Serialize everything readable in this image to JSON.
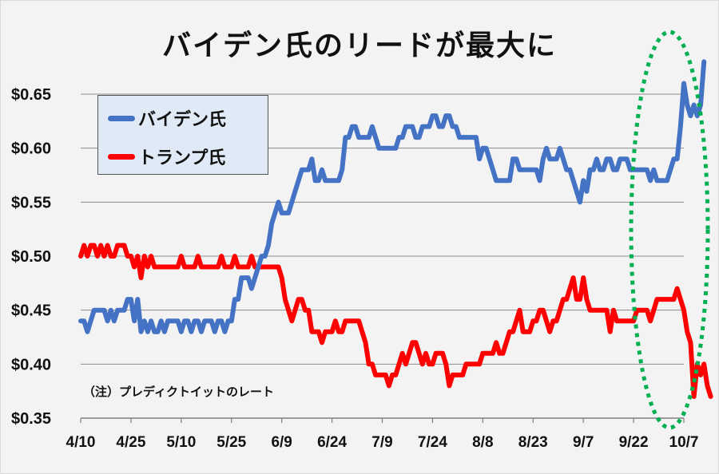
{
  "title": "バイデン氏のリードが最大に",
  "note": "（注）プレディクトイットのレート",
  "legend": {
    "biden": {
      "label": "バイデン氏",
      "color": "#4472c4"
    },
    "trump": {
      "label": "トランプ氏",
      "color": "#ff0000"
    }
  },
  "highlight": {
    "shape": "dotted-ellipse",
    "color": "#00b050"
  },
  "chart_data": {
    "type": "line",
    "title": "バイデン氏のリードが最大に",
    "xlabel": "",
    "ylabel": "",
    "ylim": [
      0.35,
      0.68
    ],
    "y_ticks": [
      "$0.35",
      "$0.40",
      "$0.45",
      "$0.50",
      "$0.55",
      "$0.60",
      "$0.65"
    ],
    "x_ticks": [
      "4/10",
      "4/25",
      "5/10",
      "5/25",
      "6/9",
      "6/24",
      "7/9",
      "7/24",
      "8/8",
      "8/23",
      "9/7",
      "9/22",
      "10/7"
    ],
    "grid": "horizontal",
    "legend_position": "upper-left",
    "annotation": "（注）プレディクトイットのレート",
    "x_start": "4/10",
    "day_step": 1,
    "series": [
      {
        "name": "バイデン氏",
        "color": "#4472c4",
        "values": [
          0.44,
          0.44,
          0.43,
          0.44,
          0.45,
          0.45,
          0.45,
          0.45,
          0.44,
          0.45,
          0.44,
          0.45,
          0.45,
          0.45,
          0.46,
          0.46,
          0.44,
          0.46,
          0.43,
          0.44,
          0.43,
          0.44,
          0.43,
          0.43,
          0.44,
          0.43,
          0.44,
          0.44,
          0.44,
          0.44,
          0.43,
          0.44,
          0.44,
          0.43,
          0.44,
          0.44,
          0.43,
          0.44,
          0.44,
          0.44,
          0.43,
          0.44,
          0.44,
          0.43,
          0.44,
          0.44,
          0.46,
          0.46,
          0.48,
          0.48,
          0.48,
          0.47,
          0.48,
          0.49,
          0.5,
          0.5,
          0.51,
          0.53,
          0.54,
          0.55,
          0.54,
          0.54,
          0.54,
          0.55,
          0.56,
          0.57,
          0.58,
          0.58,
          0.58,
          0.59,
          0.57,
          0.57,
          0.58,
          0.57,
          0.57,
          0.57,
          0.57,
          0.57,
          0.58,
          0.61,
          0.61,
          0.62,
          0.62,
          0.61,
          0.61,
          0.61,
          0.61,
          0.62,
          0.61,
          0.6,
          0.6,
          0.6,
          0.6,
          0.6,
          0.6,
          0.61,
          0.61,
          0.62,
          0.62,
          0.62,
          0.61,
          0.61,
          0.62,
          0.62,
          0.62,
          0.63,
          0.63,
          0.62,
          0.62,
          0.63,
          0.63,
          0.62,
          0.62,
          0.61,
          0.61,
          0.61,
          0.61,
          0.61,
          0.61,
          0.59,
          0.6,
          0.6,
          0.59,
          0.58,
          0.57,
          0.57,
          0.57,
          0.57,
          0.57,
          0.59,
          0.59,
          0.58,
          0.58,
          0.58,
          0.58,
          0.58,
          0.58,
          0.57,
          0.59,
          0.6,
          0.59,
          0.59,
          0.59,
          0.6,
          0.59,
          0.58,
          0.58,
          0.57,
          0.56,
          0.55,
          0.57,
          0.56,
          0.58,
          0.58,
          0.59,
          0.58,
          0.58,
          0.59,
          0.59,
          0.58,
          0.58,
          0.59,
          0.59,
          0.59,
          0.58,
          0.58,
          0.58,
          0.58,
          0.58,
          0.58,
          0.57,
          0.58,
          0.57,
          0.57,
          0.57,
          0.57,
          0.58,
          0.59,
          0.59,
          0.62,
          0.66,
          0.64,
          0.63,
          0.64,
          0.63,
          0.64,
          0.68
        ]
      },
      {
        "name": "トランプ氏",
        "color": "#ff0000",
        "values": [
          0.5,
          0.51,
          0.5,
          0.51,
          0.51,
          0.5,
          0.51,
          0.5,
          0.51,
          0.5,
          0.5,
          0.51,
          0.51,
          0.51,
          0.5,
          0.5,
          0.49,
          0.5,
          0.48,
          0.5,
          0.49,
          0.5,
          0.49,
          0.49,
          0.49,
          0.49,
          0.49,
          0.49,
          0.49,
          0.49,
          0.5,
          0.49,
          0.49,
          0.49,
          0.49,
          0.5,
          0.49,
          0.49,
          0.49,
          0.49,
          0.49,
          0.49,
          0.5,
          0.49,
          0.49,
          0.49,
          0.5,
          0.49,
          0.49,
          0.49,
          0.49,
          0.5,
          0.49,
          0.49,
          0.49,
          0.49,
          0.49,
          0.49,
          0.49,
          0.49,
          0.48,
          0.46,
          0.45,
          0.44,
          0.45,
          0.46,
          0.46,
          0.45,
          0.45,
          0.43,
          0.43,
          0.43,
          0.42,
          0.43,
          0.43,
          0.43,
          0.44,
          0.43,
          0.43,
          0.44,
          0.44,
          0.44,
          0.44,
          0.44,
          0.43,
          0.42,
          0.4,
          0.4,
          0.39,
          0.39,
          0.39,
          0.39,
          0.38,
          0.39,
          0.39,
          0.4,
          0.41,
          0.4,
          0.41,
          0.42,
          0.42,
          0.41,
          0.4,
          0.41,
          0.4,
          0.4,
          0.41,
          0.41,
          0.41,
          0.4,
          0.38,
          0.39,
          0.39,
          0.39,
          0.39,
          0.4,
          0.4,
          0.4,
          0.4,
          0.4,
          0.41,
          0.41,
          0.41,
          0.41,
          0.42,
          0.41,
          0.41,
          0.42,
          0.43,
          0.43,
          0.44,
          0.45,
          0.43,
          0.43,
          0.43,
          0.44,
          0.44,
          0.45,
          0.45,
          0.44,
          0.43,
          0.44,
          0.44,
          0.45,
          0.46,
          0.46,
          0.47,
          0.48,
          0.46,
          0.46,
          0.48,
          0.46,
          0.45,
          0.45,
          0.45,
          0.45,
          0.45,
          0.45,
          0.43,
          0.45,
          0.44,
          0.44,
          0.44,
          0.44,
          0.44,
          0.44,
          0.45,
          0.45,
          0.45,
          0.45,
          0.44,
          0.45,
          0.46,
          0.46,
          0.46,
          0.46,
          0.46,
          0.46,
          0.47,
          0.46,
          0.45,
          0.43,
          0.42,
          0.37,
          0.4,
          0.39,
          0.4,
          0.38,
          0.37
        ]
      }
    ]
  }
}
